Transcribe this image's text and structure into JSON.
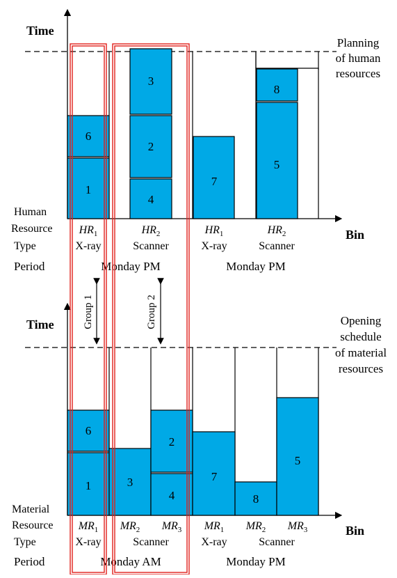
{
  "top_panel": {
    "axis_label": "Time",
    "bin_label": "Bin",
    "caption_lines": [
      "Planning",
      "of human",
      "resources"
    ],
    "row_label_lines": [
      "Human",
      "Resource"
    ],
    "type_label": "Type",
    "period_label": "Period",
    "columns": [
      {
        "resource": "HR",
        "sub": "1",
        "name": "X-ray"
      },
      {
        "resource": "HR",
        "sub": "2",
        "name": "Scanner"
      },
      {
        "resource": "HR",
        "sub": "1",
        "name": "X-ray"
      },
      {
        "resource": "HR",
        "sub": "2",
        "name": "Scanner"
      }
    ],
    "periods": [
      "Monday PM",
      "Monday PM"
    ],
    "blocks": [
      "1",
      "6",
      "4",
      "2",
      "3",
      "7",
      "5",
      "8"
    ]
  },
  "bottom_panel": {
    "axis_label": "Time",
    "bin_label": "Bin",
    "caption_lines": [
      "Opening",
      "schedule",
      "of material",
      "resources"
    ],
    "row_label_lines": [
      "Material",
      "Resource"
    ],
    "type_label": "Type",
    "period_label": "Period",
    "columns": [
      {
        "resource": "MR",
        "sub": "1",
        "name": "X-ray"
      },
      {
        "resource": "MR",
        "sub": "2",
        "name": ""
      },
      {
        "resource": "MR",
        "sub": "3",
        "name": ""
      },
      {
        "resource": "MR",
        "sub": "1",
        "name": "X-ray"
      },
      {
        "resource": "MR",
        "sub": "2",
        "name": ""
      },
      {
        "resource": "MR",
        "sub": "3",
        "name": ""
      }
    ],
    "scanner_labels": [
      "Scanner",
      "Scanner"
    ],
    "periods": [
      "Monday AM",
      "Monday PM"
    ],
    "blocks": [
      "1",
      "6",
      "3",
      "4",
      "2",
      "7",
      "8",
      "5"
    ]
  },
  "groups": [
    "Group 1",
    "Group 2"
  ],
  "colors": {
    "block": "#00a9e6",
    "group_outline": "#e0201b",
    "line": "#000000"
  }
}
